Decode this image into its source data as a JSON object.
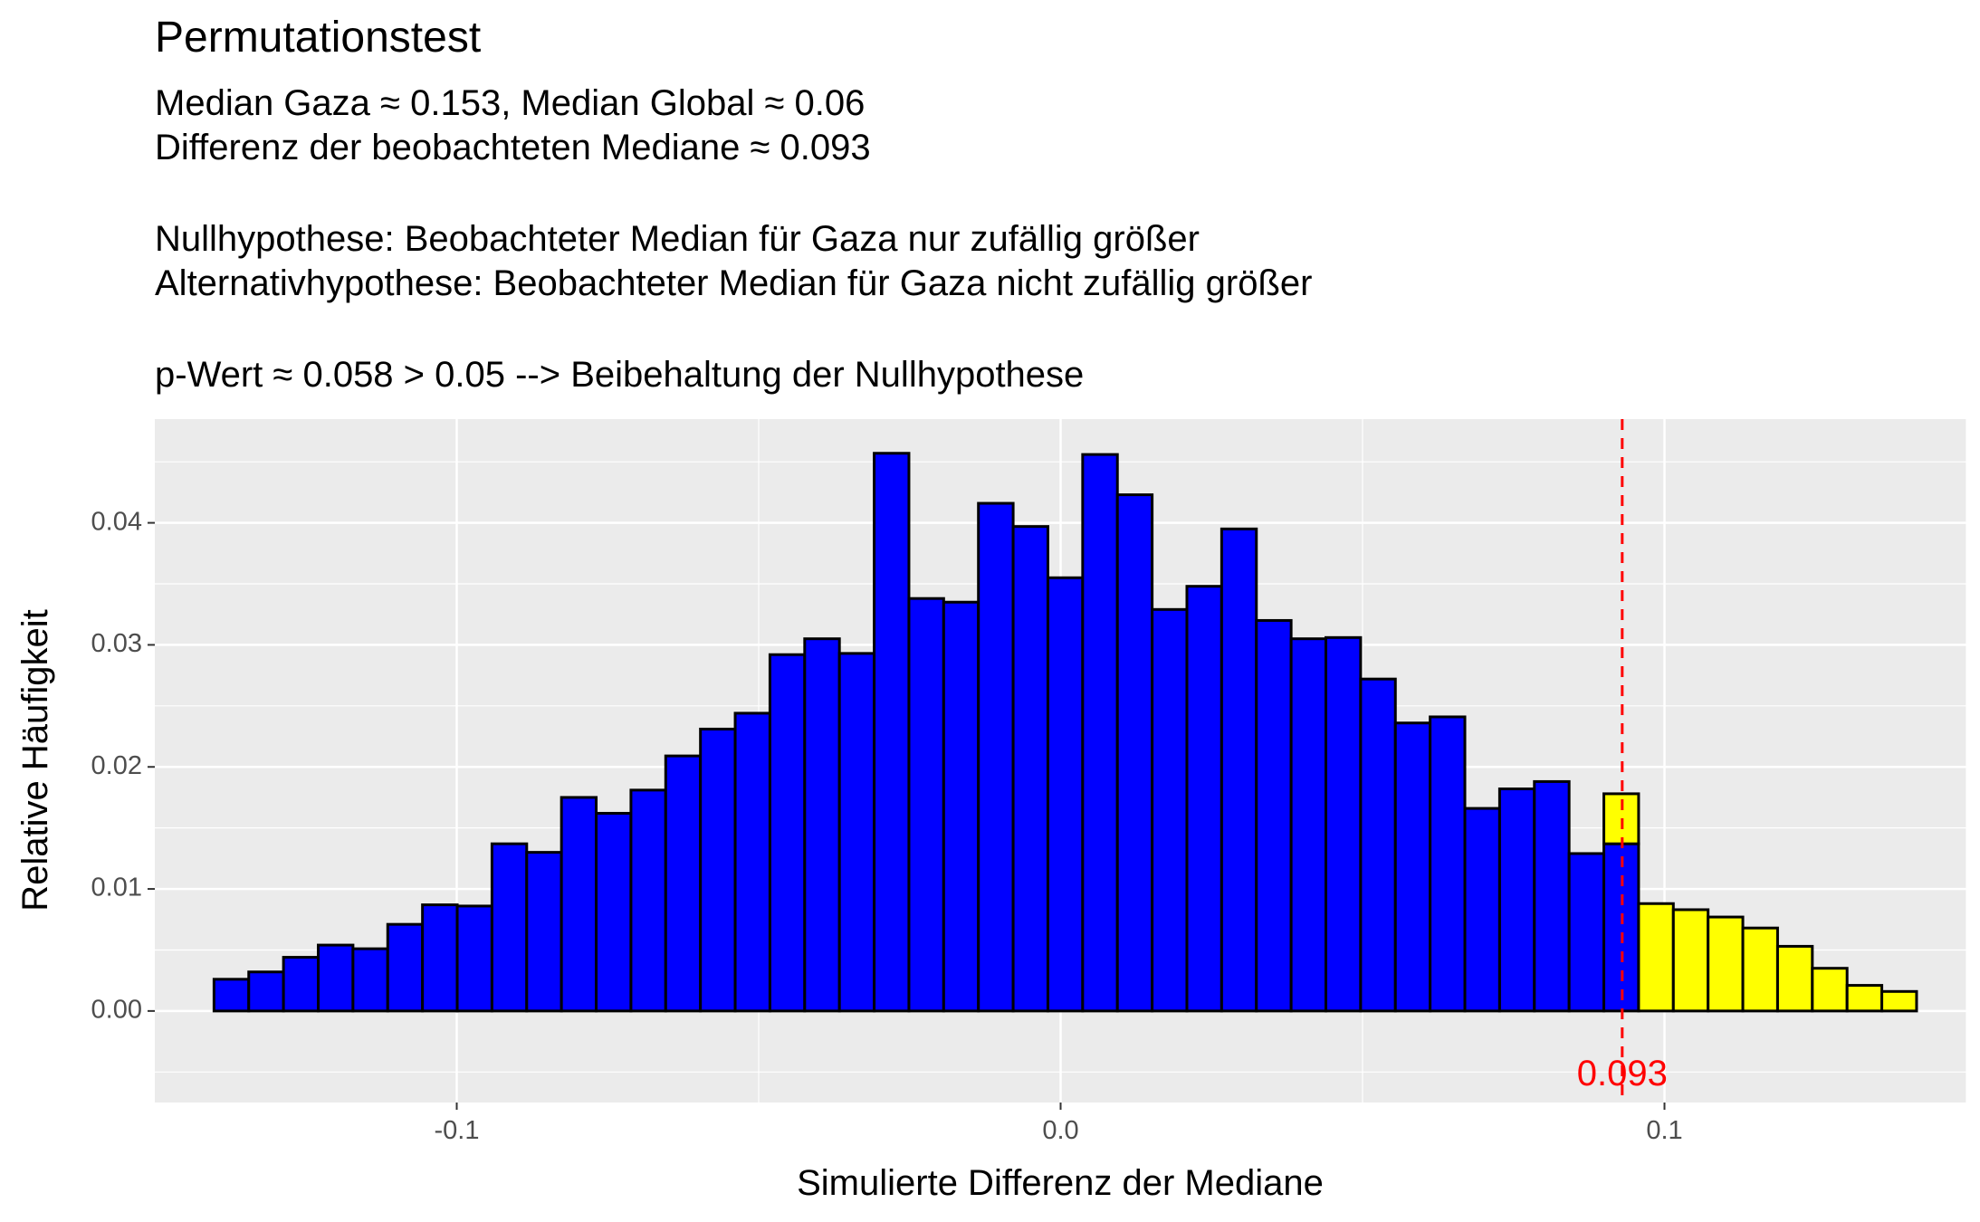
{
  "chart_data": {
    "type": "bar",
    "title": "Permutationstest",
    "subtitle_lines": [
      "Median Gaza ≈ 0.153, Median Global ≈ 0.06",
      "Differenz der beobachteten Mediane ≈ 0.093",
      "",
      "Nullhypothese: Beobachteter Median für Gaza nur zufällig größer",
      "Alternativhypothese: Beobachteter Median für Gaza nicht zufällig größer",
      "",
      "p-Wert ≈ 0.058 > 0.05 --> Beibehaltung der Nullhypothese"
    ],
    "xlabel": "Simulierte Differenz der Mediane",
    "ylabel": "Relative Häufigkeit",
    "xlim": [
      -0.15,
      0.15
    ],
    "ylim": [
      -0.0075,
      0.0485
    ],
    "x_ticks": [
      -0.1,
      0.0,
      0.1
    ],
    "x_tick_labels": [
      "-0.1",
      "0.0",
      "0.1"
    ],
    "y_ticks": [
      0.0,
      0.01,
      0.02,
      0.03,
      0.04
    ],
    "y_tick_labels": [
      "0.00",
      "0.01",
      "0.02",
      "0.03",
      "0.04"
    ],
    "grid": true,
    "bin_start": -0.1402,
    "bin_width": 0.005754,
    "series": [
      {
        "color": "#0000ff",
        "values": [
          0.0026,
          0.0032,
          0.0044,
          0.0054,
          0.0051,
          0.0071,
          0.0087,
          0.0086,
          0.0137,
          0.013,
          0.0175,
          0.0162,
          0.0181,
          0.0209,
          0.0231,
          0.0244,
          0.0292,
          0.0305,
          0.0293,
          0.0457,
          0.0338,
          0.0335,
          0.0416,
          0.0397,
          0.0355,
          0.0456,
          0.0423,
          0.0329,
          0.0348,
          0.0395,
          0.032,
          0.0305,
          0.0306,
          0.0272,
          0.0236,
          0.0241,
          0.0166,
          0.0182,
          0.0188,
          0.0129,
          0.0137,
          0,
          0,
          0,
          0,
          0,
          0,
          0,
          0,
          0
        ]
      },
      {
        "color": "#ffff00",
        "values": [
          0,
          0,
          0,
          0,
          0,
          0,
          0,
          0,
          0,
          0,
          0,
          0,
          0,
          0,
          0,
          0,
          0,
          0,
          0,
          0,
          0,
          0,
          0,
          0,
          0,
          0,
          0,
          0,
          0,
          0,
          0,
          0,
          0,
          0,
          0,
          0,
          0,
          0,
          0,
          0,
          0.0041,
          0.0088,
          0.0083,
          0.0077,
          0.0068,
          0.0053,
          0.0035,
          0.0021,
          0.0016
        ]
      }
    ],
    "vline": {
      "x": 0.093,
      "color": "#ff0000",
      "style": "dashed",
      "label": "0.093"
    },
    "panel_background": "#ebebeb",
    "grid_color": "#ffffff"
  }
}
